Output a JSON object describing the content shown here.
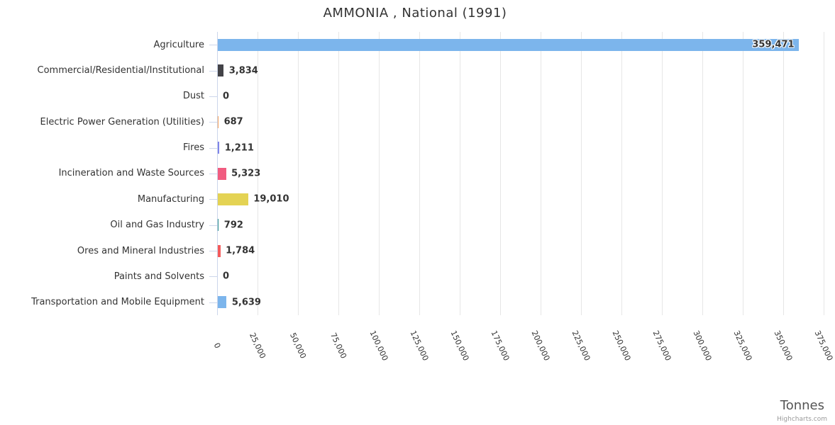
{
  "header": {
    "title": "AMMONIA , National (1991)"
  },
  "chart_data": {
    "type": "bar",
    "orientation": "horizontal",
    "title": "AMMONIA , National (1991)",
    "xlabel": "Tonnes",
    "ylabel": "",
    "xlim": [
      0,
      375000
    ],
    "tick_interval": 25000,
    "grid": true,
    "legend": false,
    "categories": [
      "Agriculture",
      "Commercial/Residential/Institutional",
      "Dust",
      "Electric Power Generation (Utilities)",
      "Fires",
      "Incineration and Waste Sources",
      "Manufacturing",
      "Oil and Gas Industry",
      "Ores and Mineral Industries",
      "Paints and Solvents",
      "Transportation and Mobile Equipment"
    ],
    "values": [
      359471,
      3834,
      0,
      687,
      1211,
      5323,
      19010,
      792,
      1784,
      0,
      5639
    ],
    "value_labels": [
      "359,471",
      "3,834",
      "0",
      "687",
      "1,211",
      "5,323",
      "19,010",
      "792",
      "1,784",
      "0",
      "5,639"
    ],
    "bar_colors": [
      "#7cb5ec",
      "#434348",
      "#90ed7d",
      "#f7a35c",
      "#8085e9",
      "#f15c80",
      "#e4d354",
      "#2b908f",
      "#f45b5b",
      "#91e8e1",
      "#7cb5ec"
    ],
    "x_tick_labels": [
      "0",
      "25,000",
      "50,000",
      "75,000",
      "100,000",
      "125,000",
      "150,000",
      "175,000",
      "200,000",
      "225,000",
      "250,000",
      "275,000",
      "300,000",
      "325,000",
      "350,000",
      "375,000"
    ]
  },
  "footer": {
    "axis_title": "Tonnes",
    "credit": "Highcharts.com"
  },
  "colors": {
    "grid": "#e6e6e6",
    "axis": "#ccd6eb",
    "title_text": "#333333",
    "label_text": "#333333",
    "axis_title_text": "#555555",
    "credit_text": "#999999"
  }
}
